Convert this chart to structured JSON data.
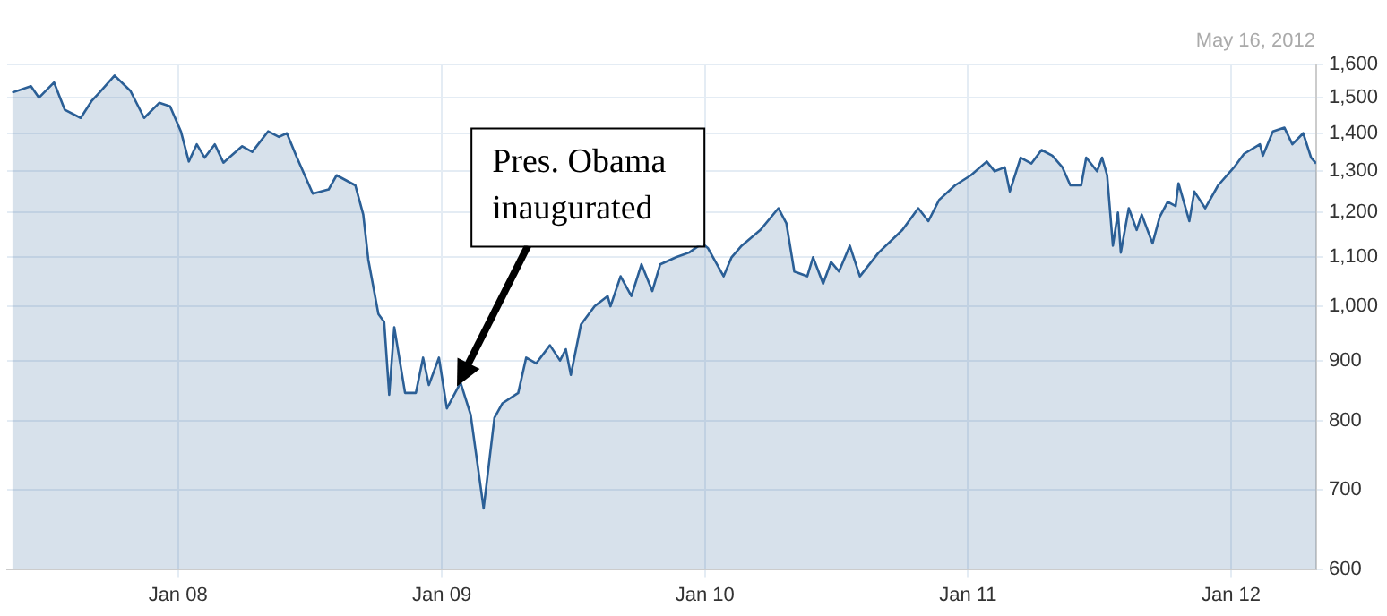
{
  "chart_data": {
    "type": "area",
    "subtitle": "May 16, 2012",
    "x": [
      "2007-05-16",
      "2007-06-11",
      "2007-06-22",
      "2007-07-13",
      "2007-07-28",
      "2007-08-19",
      "2007-09-03",
      "2007-09-14",
      "2007-10-05",
      "2007-10-27",
      "2007-11-15",
      "2007-12-06",
      "2007-12-21",
      "2008-01-05",
      "2008-01-16",
      "2008-01-27",
      "2008-02-07",
      "2008-02-21",
      "2008-03-04",
      "2008-03-30",
      "2008-04-13",
      "2008-05-05",
      "2008-05-20",
      "2008-05-31",
      "2008-06-14",
      "2008-07-06",
      "2008-07-28",
      "2008-08-08",
      "2008-09-03",
      "2008-09-14",
      "2008-09-21",
      "2008-10-05",
      "2008-10-13",
      "2008-10-20",
      "2008-10-27",
      "2008-11-11",
      "2008-11-26",
      "2008-12-06",
      "2008-12-14",
      "2008-12-28",
      "2009-01-08",
      "2009-01-27",
      "2009-02-10",
      "2009-02-28",
      "2009-03-15",
      "2009-03-26",
      "2009-04-17",
      "2009-04-28",
      "2009-05-12",
      "2009-05-31",
      "2009-06-14",
      "2009-06-22",
      "2009-06-29",
      "2009-07-13",
      "2009-08-01",
      "2009-08-19",
      "2009-08-23",
      "2009-09-06",
      "2009-09-21",
      "2009-10-05",
      "2009-10-20",
      "2009-10-31",
      "2009-11-22",
      "2009-12-10",
      "2009-12-28",
      "2010-01-05",
      "2010-01-27",
      "2010-02-07",
      "2010-02-21",
      "2010-03-19",
      "2010-04-13",
      "2010-04-24",
      "2010-05-05",
      "2010-05-23",
      "2010-05-31",
      "2010-06-14",
      "2010-06-25",
      "2010-07-06",
      "2010-07-21",
      "2010-08-04",
      "2010-08-30",
      "2010-10-02",
      "2010-10-24",
      "2010-11-07",
      "2010-11-22",
      "2010-12-14",
      "2011-01-05",
      "2011-01-27",
      "2011-02-07",
      "2011-02-21",
      "2011-02-28",
      "2011-03-15",
      "2011-03-30",
      "2011-04-13",
      "2011-04-28",
      "2011-05-12",
      "2011-05-23",
      "2011-06-07",
      "2011-06-14",
      "2011-06-29",
      "2011-07-06",
      "2011-07-13",
      "2011-07-21",
      "2011-07-28",
      "2011-08-01",
      "2011-08-12",
      "2011-08-23",
      "2011-08-30",
      "2011-09-14",
      "2011-09-24",
      "2011-10-05",
      "2011-10-16",
      "2011-10-20",
      "2011-11-04",
      "2011-11-11",
      "2011-11-26",
      "2011-12-14",
      "2012-01-05",
      "2012-01-19",
      "2012-02-10",
      "2012-02-14",
      "2012-02-28",
      "2012-03-15",
      "2012-03-26",
      "2012-04-10",
      "2012-04-21",
      "2012-04-28"
    ],
    "series": [
      {
        "color": "#2b5f96",
        "values": [
          1515,
          1534,
          1500,
          1545,
          1465,
          1442,
          1490,
          1515,
          1566,
          1520,
          1442,
          1485,
          1475,
          1405,
          1325,
          1370,
          1335,
          1370,
          1322,
          1365,
          1350,
          1405,
          1390,
          1400,
          1335,
          1245,
          1255,
          1290,
          1265,
          1195,
          1095,
          985,
          970,
          842,
          960,
          845,
          845,
          905,
          858,
          905,
          820,
          862,
          810,
          675,
          805,
          828,
          845,
          905,
          895,
          927,
          900,
          920,
          875,
          965,
          1000,
          1020,
          1000,
          1060,
          1020,
          1085,
          1030,
          1085,
          1100,
          1110,
          1130,
          1120,
          1060,
          1100,
          1125,
          1160,
          1210,
          1175,
          1070,
          1060,
          1100,
          1045,
          1090,
          1070,
          1125,
          1060,
          1110,
          1160,
          1210,
          1180,
          1230,
          1265,
          1290,
          1325,
          1300,
          1310,
          1250,
          1335,
          1320,
          1355,
          1340,
          1310,
          1265,
          1265,
          1335,
          1300,
          1335,
          1290,
          1125,
          1200,
          1110,
          1210,
          1160,
          1195,
          1130,
          1190,
          1225,
          1215,
          1270,
          1180,
          1250,
          1210,
          1265,
          1310,
          1345,
          1370,
          1340,
          1405,
          1415,
          1370,
          1400,
          1335,
          1320
        ]
      }
    ],
    "log": "y",
    "ylim": [
      600,
      1600
    ],
    "yticks": [
      {
        "value": 600,
        "label": "600"
      },
      {
        "value": 700,
        "label": "700"
      },
      {
        "value": 800,
        "label": "800"
      },
      {
        "value": 900,
        "label": "900"
      },
      {
        "value": 1000,
        "label": "1,000"
      },
      {
        "value": 1100,
        "label": "1,100"
      },
      {
        "value": 1200,
        "label": "1,200"
      },
      {
        "value": 1300,
        "label": "1,300"
      },
      {
        "value": 1400,
        "label": "1,400"
      },
      {
        "value": 1500,
        "label": "1,500"
      },
      {
        "value": 1600,
        "label": "1,600"
      }
    ],
    "xlim": [
      "2007-05-09",
      "2012-04-28"
    ],
    "xticks": [
      {
        "value": "2008-01-01",
        "label": "Jan 08"
      },
      {
        "value": "2009-01-01",
        "label": "Jan 09"
      },
      {
        "value": "2010-01-01",
        "label": "Jan 10"
      },
      {
        "value": "2011-01-01",
        "label": "Jan 11"
      },
      {
        "value": "2012-01-01",
        "label": "Jan 12"
      }
    ],
    "grid": true,
    "legend": false,
    "marker": "none",
    "line_style": "solid",
    "annotations": [
      {
        "text": "Pres. Obama inaugurated",
        "x": "2009-01-27",
        "y": 862
      }
    ]
  }
}
